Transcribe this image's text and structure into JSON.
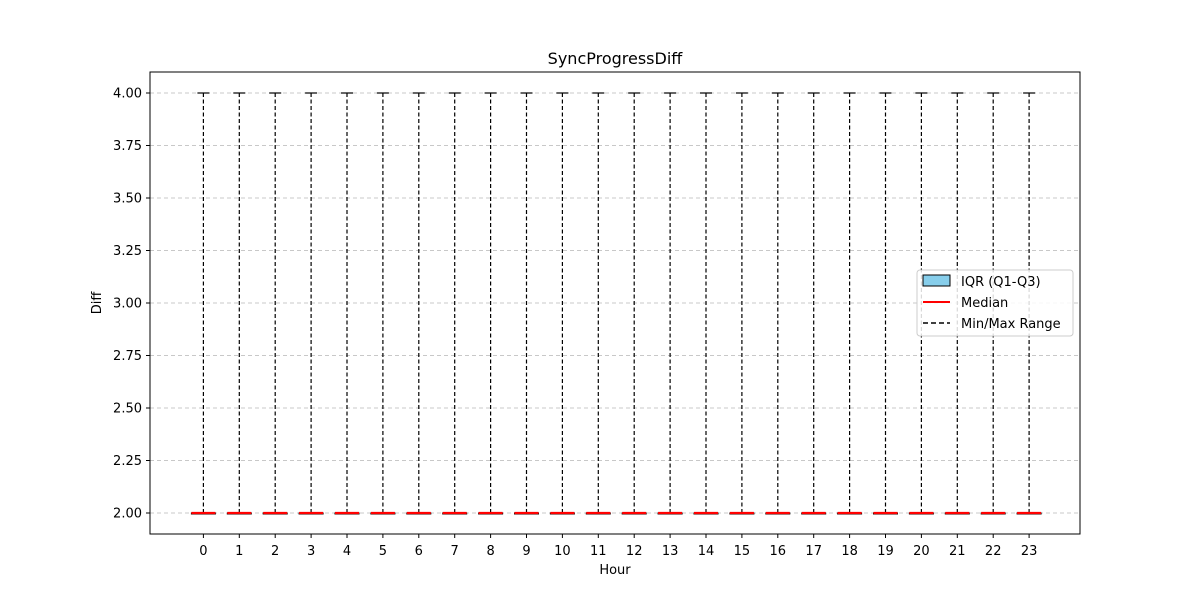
{
  "chart_data": {
    "type": "box",
    "title": "SyncProgressDiff",
    "xlabel": "Hour",
    "ylabel": "Diff",
    "categories": [
      "0",
      "1",
      "2",
      "3",
      "4",
      "5",
      "6",
      "7",
      "8",
      "9",
      "10",
      "11",
      "12",
      "13",
      "14",
      "15",
      "16",
      "17",
      "18",
      "19",
      "20",
      "21",
      "22",
      "23"
    ],
    "boxes": [
      {
        "min": 2.0,
        "q1": 2.0,
        "median": 2.0,
        "q3": 2.0,
        "max": 4.0
      },
      {
        "min": 2.0,
        "q1": 2.0,
        "median": 2.0,
        "q3": 2.0,
        "max": 4.0
      },
      {
        "min": 2.0,
        "q1": 2.0,
        "median": 2.0,
        "q3": 2.0,
        "max": 4.0
      },
      {
        "min": 2.0,
        "q1": 2.0,
        "median": 2.0,
        "q3": 2.0,
        "max": 4.0
      },
      {
        "min": 2.0,
        "q1": 2.0,
        "median": 2.0,
        "q3": 2.0,
        "max": 4.0
      },
      {
        "min": 2.0,
        "q1": 2.0,
        "median": 2.0,
        "q3": 2.0,
        "max": 4.0
      },
      {
        "min": 2.0,
        "q1": 2.0,
        "median": 2.0,
        "q3": 2.0,
        "max": 4.0
      },
      {
        "min": 2.0,
        "q1": 2.0,
        "median": 2.0,
        "q3": 2.0,
        "max": 4.0
      },
      {
        "min": 2.0,
        "q1": 2.0,
        "median": 2.0,
        "q3": 2.0,
        "max": 4.0
      },
      {
        "min": 2.0,
        "q1": 2.0,
        "median": 2.0,
        "q3": 2.0,
        "max": 4.0
      },
      {
        "min": 2.0,
        "q1": 2.0,
        "median": 2.0,
        "q3": 2.0,
        "max": 4.0
      },
      {
        "min": 2.0,
        "q1": 2.0,
        "median": 2.0,
        "q3": 2.0,
        "max": 4.0
      },
      {
        "min": 2.0,
        "q1": 2.0,
        "median": 2.0,
        "q3": 2.0,
        "max": 4.0
      },
      {
        "min": 2.0,
        "q1": 2.0,
        "median": 2.0,
        "q3": 2.0,
        "max": 4.0
      },
      {
        "min": 2.0,
        "q1": 2.0,
        "median": 2.0,
        "q3": 2.0,
        "max": 4.0
      },
      {
        "min": 2.0,
        "q1": 2.0,
        "median": 2.0,
        "q3": 2.0,
        "max": 4.0
      },
      {
        "min": 2.0,
        "q1": 2.0,
        "median": 2.0,
        "q3": 2.0,
        "max": 4.0
      },
      {
        "min": 2.0,
        "q1": 2.0,
        "median": 2.0,
        "q3": 2.0,
        "max": 4.0
      },
      {
        "min": 2.0,
        "q1": 2.0,
        "median": 2.0,
        "q3": 2.0,
        "max": 4.0
      },
      {
        "min": 2.0,
        "q1": 2.0,
        "median": 2.0,
        "q3": 2.0,
        "max": 4.0
      },
      {
        "min": 2.0,
        "q1": 2.0,
        "median": 2.0,
        "q3": 2.0,
        "max": 4.0
      },
      {
        "min": 2.0,
        "q1": 2.0,
        "median": 2.0,
        "q3": 2.0,
        "max": 4.0
      },
      {
        "min": 2.0,
        "q1": 2.0,
        "median": 2.0,
        "q3": 2.0,
        "max": 4.0
      },
      {
        "min": 2.0,
        "q1": 2.0,
        "median": 2.0,
        "q3": 2.0,
        "max": 4.0
      }
    ],
    "ylim": [
      1.9,
      4.1
    ],
    "yticks": [
      "2.00",
      "2.25",
      "2.50",
      "2.75",
      "3.00",
      "3.25",
      "3.50",
      "3.75",
      "4.00"
    ],
    "grid": "y-dashed",
    "legend": {
      "placement": "center-right",
      "entries": [
        {
          "label": "IQR (Q1-Q3)",
          "kind": "box"
        },
        {
          "label": "Median",
          "kind": "median-line"
        },
        {
          "label": "Min/Max Range",
          "kind": "whisker-line"
        }
      ]
    },
    "colors": {
      "box_fill": "#87ceeb",
      "median": "#ff0000",
      "whisker": "#000000",
      "grid": "#c8c8c8"
    }
  }
}
